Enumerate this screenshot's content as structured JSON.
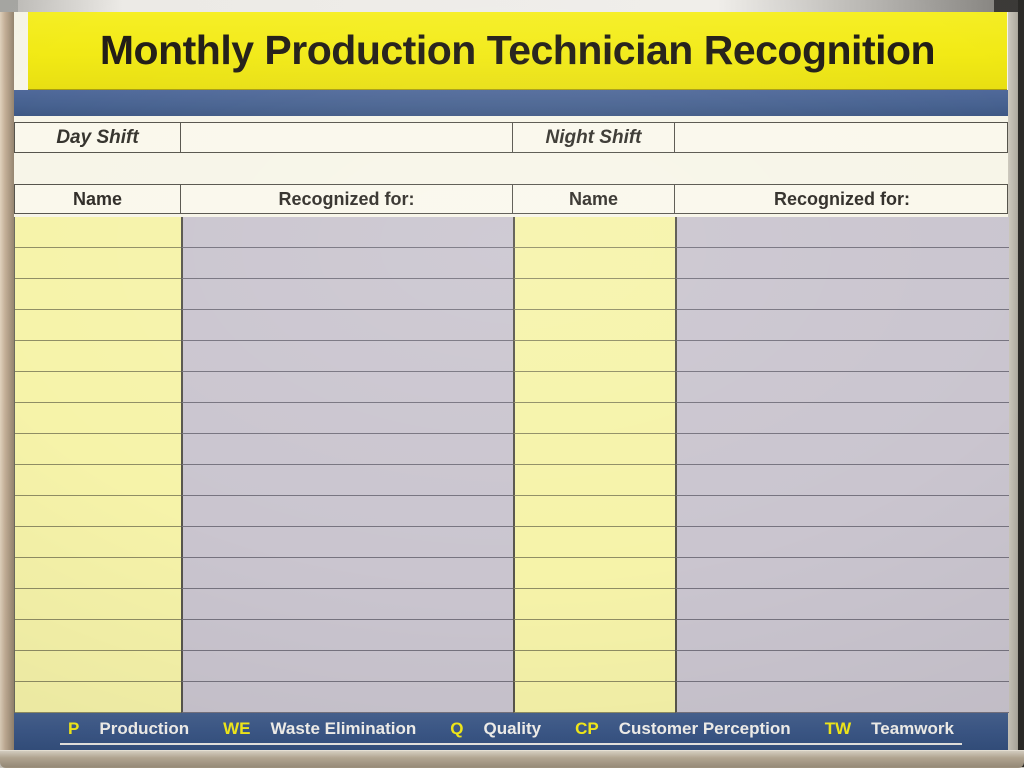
{
  "board": {
    "title": "Monthly Production Technician Recognition",
    "shift_row": {
      "day_label": "Day Shift",
      "day_value": "",
      "night_label": "Night Shift",
      "night_value": ""
    },
    "column_headers": [
      "Name",
      "Recognized for:",
      "Name",
      "Recognized for:"
    ],
    "table": {
      "row_count": 16,
      "columns": [
        "name-day",
        "recognized-day",
        "name-night",
        "recognized-night"
      ],
      "all_cells_empty": true
    },
    "legend": {
      "items": [
        {
          "key": "P",
          "label": "Production"
        },
        {
          "key": "WE",
          "label": "Waste Elimination"
        },
        {
          "key": "Q",
          "label": "Quality"
        },
        {
          "key": "CP",
          "label": "Customer Perception"
        },
        {
          "key": "TW",
          "label": "Teamwork"
        }
      ]
    },
    "colors": {
      "banner_yellow": "#f2ea15",
      "stripe_blue": "#46618f",
      "legend_blue": "#3c5888",
      "name_column_yellow": "#f6f3a9",
      "recognized_column_lavender": "#cac5cf",
      "board_cream": "#f7f5e8",
      "legend_key_yellow": "#f5ec1a",
      "title_text": "#211d16"
    }
  }
}
